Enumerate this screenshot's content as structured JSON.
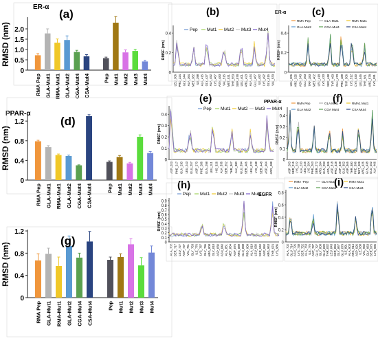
{
  "chart_data": [
    {
      "id": "a",
      "type": "bar",
      "panel_label": "(a)",
      "title": "ER-α",
      "ylabel": "RMSD (nm)",
      "ylim": [
        0,
        2.5
      ],
      "yticks": [
        0,
        0.5,
        1.0,
        1.5,
        2.0
      ],
      "categories": [
        "RMA Pep",
        "GLA-Mut1",
        "RMA-Mut1",
        "GLA-Mut2",
        "CGA-Mut4",
        "CSA-Mut4",
        "Pep",
        "Mut1",
        "Mut2",
        "Mut3",
        "Mut4"
      ],
      "values": [
        0.72,
        1.78,
        1.33,
        1.46,
        0.88,
        0.67,
        0.58,
        2.3,
        0.86,
        0.93,
        0.42
      ],
      "errors": [
        0.08,
        0.22,
        0.18,
        0.2,
        0.08,
        0.08,
        0.05,
        0.3,
        0.12,
        0.08,
        0.06
      ],
      "colors": [
        "#f0963c",
        "#b4b4b4",
        "#f0c828",
        "#5a9ad2",
        "#5aa050",
        "#2a4480",
        "#50505a",
        "#a07814",
        "#d873e6",
        "#5adc3c",
        "#7388d8"
      ]
    },
    {
      "id": "d",
      "type": "bar",
      "panel_label": "(d)",
      "title": "PPAR-α",
      "ylabel": "RMSD (nm)",
      "ylim": [
        0,
        1.3
      ],
      "yticks": [
        0,
        0.4,
        0.8,
        1.2
      ],
      "categories": [
        "RMA Pep",
        "GLA-Mut1",
        "RMA-Mut1",
        "GLA-Mut2",
        "CGA-Mut4",
        "CSA-Mut4",
        "Pep",
        "Mut1",
        "Mut2",
        "Mut3",
        "Mut4"
      ],
      "values": [
        0.79,
        0.67,
        0.51,
        0.49,
        0.3,
        1.3,
        0.37,
        0.47,
        0.34,
        0.88,
        0.55
      ],
      "errors": [
        0.02,
        0.03,
        0.02,
        0.02,
        0.01,
        0.03,
        0.02,
        0.03,
        0.02,
        0.04,
        0.03
      ],
      "colors": [
        "#f0963c",
        "#b4b4b4",
        "#f0c828",
        "#5a9ad2",
        "#5aa050",
        "#2a4480",
        "#50505a",
        "#a07814",
        "#d873e6",
        "#5adc3c",
        "#7388d8"
      ]
    },
    {
      "id": "g",
      "type": "bar",
      "panel_label": "(g)",
      "title": "",
      "ylabel": "RMSD (nm)",
      "ylim": [
        0,
        1.2
      ],
      "yticks": [
        0,
        0.4,
        0.8,
        1.2
      ],
      "categories": [
        "RMA Pep",
        "GLA-Mut1",
        "RMA-Mut1",
        "GLA-Mut2",
        "CGA-Mut4",
        "CSA-Mut4",
        "Pep",
        "Mut1",
        "Mut2",
        "Mut3",
        "Mut4"
      ],
      "values": [
        0.67,
        0.79,
        0.57,
        0.93,
        0.72,
        1.01,
        0.68,
        0.73,
        0.96,
        0.58,
        0.81
      ],
      "errors": [
        0.12,
        0.1,
        0.16,
        0.18,
        0.08,
        0.18,
        0.05,
        0.06,
        0.1,
        0.14,
        0.12
      ],
      "colors": [
        "#f0963c",
        "#b4b4b4",
        "#f0c828",
        "#5a9ad2",
        "#5aa050",
        "#2a4480",
        "#50505a",
        "#a07814",
        "#d873e6",
        "#5adc3c",
        "#7388d8"
      ]
    },
    {
      "id": "b",
      "type": "line",
      "panel_label": "(b)",
      "title": "",
      "ylabel": "RMSF (nm)",
      "ylim": [
        0,
        0.45
      ],
      "yticks": [
        0,
        0.2,
        0.4
      ],
      "legend": [
        "Pep",
        "Mut1",
        "Mut2",
        "Mut3",
        "Mut4"
      ],
      "colors": [
        "#6e96d2",
        "#a0d25a",
        "#f0c828",
        "#c8c8c8",
        "#785ac8"
      ],
      "points": 60,
      "peaks": [
        [
          0.04,
          0.3
        ],
        [
          0.2,
          0.2
        ],
        [
          0.33,
          0.26
        ],
        [
          0.5,
          0.22
        ],
        [
          0.67,
          0.22
        ],
        [
          0.8,
          0.24
        ],
        [
          0.93,
          0.44
        ]
      ],
      "ticks": [
        "LEU_306",
        "PRO_324",
        "GLY_344",
        "ALA_364",
        "MET_382",
        "ILE_398",
        "ALA_415",
        "GLY_437",
        "ALA_452",
        "LYS_467",
        "ASN_483",
        "VAL_515",
        "MET_531",
        "THR_553",
        "SER_578",
        "LEU_401",
        "ARG_423",
        "ALA_444",
        "GLU_467",
        "ILE_482",
        "LYS_492",
        "GLY_515",
        "VAL_533"
      ]
    },
    {
      "id": "c",
      "type": "line",
      "panel_label": "(c)",
      "title": "ER-α",
      "ylabel": "RMSF (nm)",
      "ylim": [
        0,
        0.45
      ],
      "yticks": [
        0,
        0.2,
        0.4
      ],
      "legend": [
        "RMA-Pep",
        "GLA-Mut1",
        "RMA-Mut1",
        "GLA-Mut2",
        "CGA-Mut4",
        "CSA-Mut4"
      ],
      "colors": [
        "#f0963c",
        "#b4b4b4",
        "#f0c828",
        "#5a9ad2",
        "#5aa050",
        "#2a4480"
      ],
      "points": 60,
      "peaks": [
        [
          0.22,
          0.24
        ],
        [
          0.47,
          0.34
        ],
        [
          0.6,
          0.32
        ],
        [
          0.72,
          0.3
        ],
        [
          0.86,
          0.22
        ]
      ],
      "ticks": [
        "LEU_306",
        "ARG_325",
        "ASN_343",
        "GLU_363",
        "TRP_383",
        "MET_402",
        "LEU_418",
        "LYS_433",
        "SER_448",
        "TYR_463",
        "GLU_473",
        "PRO_489",
        "THR_506",
        "LYS_512",
        "CYS_530",
        "LEU_545",
        "THR_561",
        "ARG_578",
        "LYS_591"
      ]
    },
    {
      "id": "e",
      "type": "line",
      "panel_label": "(e)",
      "title": "",
      "ylabel": "RMSF (nm)",
      "ylim": [
        0,
        0.45
      ],
      "yticks": [
        0,
        0.1,
        0.2,
        0.3,
        0.4
      ],
      "legend": [
        "Pep",
        "Mut1",
        "Mut2",
        "Mut3",
        "Mut4"
      ],
      "colors": [
        "#6e96d2",
        "#a0d25a",
        "#f0c828",
        "#c8c8c8",
        "#785ac8"
      ],
      "points": 64,
      "peaks": [
        [
          0.02,
          0.42
        ],
        [
          0.2,
          0.2
        ],
        [
          0.42,
          0.24
        ],
        [
          0.6,
          0.2
        ],
        [
          0.78,
          0.18
        ],
        [
          0.94,
          0.3
        ]
      ],
      "ticks": [
        "ASP_203",
        "PHE_217",
        "GLN_230",
        "LEU_243",
        "GLU_257",
        "ASP_270",
        "PHE_286",
        "GLN_298",
        "LEU_311",
        "HIS_326",
        "ALA_336",
        "SER_352",
        "THR_367",
        "ALA_380",
        "GLU_394",
        "SER_406",
        "LEU_422",
        "LYS_438",
        "SER_448",
        "ASP_464",
        "ARG_488"
      ]
    },
    {
      "id": "f",
      "type": "line",
      "panel_label": "(f)",
      "title": "PPAR-α",
      "ylabel": "RMSF (nm)",
      "ylim": [
        0,
        0.45
      ],
      "yticks": [
        0,
        0.1,
        0.2,
        0.3,
        0.4
      ],
      "legend": [
        "RMA Pep",
        "GLA Mut1",
        "RMA1 Mut1",
        "GLA Mut2",
        "CGA Mut4",
        "CSA Mut4"
      ],
      "colors": [
        "#f0963c",
        "#b4b4b4",
        "#f0c828",
        "#5a9ad2",
        "#5aa050",
        "#2a4480"
      ],
      "points": 64,
      "peaks": [
        [
          0.03,
          0.42
        ],
        [
          0.12,
          0.3
        ],
        [
          0.3,
          0.22
        ],
        [
          0.47,
          0.22
        ],
        [
          0.62,
          0.18
        ],
        [
          0.8,
          0.24
        ],
        [
          0.95,
          0.38
        ]
      ],
      "ticks": [
        "ASP_203",
        "SER_215",
        "LYS_222",
        "ALA_233",
        "LEU_245",
        "LYS_254",
        "PHE_263",
        "SER_272",
        "ARG_284",
        "GLN_293",
        "ASN_306",
        "ASP_318",
        "PRO_328",
        "ASP_339",
        "GLU_352",
        "ASP_365",
        "THR_380",
        "PHE_396",
        "MET_409",
        "ARG_426",
        "GLN_438",
        "GLU_452",
        "ALA_466"
      ]
    },
    {
      "id": "h",
      "type": "line",
      "panel_label": "(h)",
      "title": "EGFR",
      "ylabel": "RMSF (nm)",
      "ylim": [
        0,
        0.9
      ],
      "yticks": [
        0,
        0.1,
        0.2,
        0.3,
        0.4,
        0.5,
        0.6,
        0.7,
        0.8,
        0.9
      ],
      "legend": [
        "Pep",
        "Mut1",
        "Mut2",
        "Mut3",
        "Mut4"
      ],
      "colors": [
        "#6e96d2",
        "#a0d25a",
        "#f0c828",
        "#c8c8c8",
        "#785ac8"
      ],
      "points": 70,
      "peaks": [
        [
          0.3,
          0.3
        ],
        [
          0.5,
          0.28
        ],
        [
          0.68,
          0.7
        ],
        [
          0.94,
          0.62
        ]
      ],
      "ticks": [
        "ALA_702",
        "SER_717",
        "LEU_727",
        "ASP_737",
        "VAL_751",
        "GLY_763",
        "ILE_776",
        "LYS_787",
        "GLY_796",
        "ARG_808",
        "GLY_818",
        "ASP_830",
        "ASN_840",
        "ALA_851",
        "MET_864",
        "ASP_876",
        "ARG_889",
        "GLN_898",
        "PRO_909",
        "ALA_919",
        "LEU_930",
        "SER_940",
        "ASP_950",
        "ARG_963",
        "THR_974",
        "LYS_986"
      ]
    },
    {
      "id": "i",
      "type": "line",
      "panel_label": "(i)",
      "title": "",
      "ylabel": "RMSF (nm)",
      "ylim": [
        0,
        0.8
      ],
      "yticks": [
        0,
        0.2,
        0.4,
        0.6,
        0.8
      ],
      "legend": [
        "RMA -Pep",
        "GLA Mut1",
        "RMA Mut1",
        "GLA Mut2",
        "CGA Mut4",
        "CSA Mut4"
      ],
      "colors": [
        "#f0963c",
        "#b4b4b4",
        "#f0c828",
        "#5a9ad2",
        "#5aa050",
        "#2a4480"
      ],
      "points": 70,
      "peaks": [
        [
          0.05,
          0.3
        ],
        [
          0.3,
          0.28
        ],
        [
          0.57,
          0.6
        ],
        [
          0.77,
          0.3
        ],
        [
          0.95,
          0.55
        ]
      ],
      "ticks": [
        "ALA_702",
        "GLU_714",
        "ASN_726",
        "LYS_738",
        "SER_752",
        "ALA_763",
        "ILE_776",
        "ASP_787",
        "GLN_797",
        "GLY_808",
        "GLU_820",
        "THR_832",
        "LEU_843",
        "SER_855",
        "GLY_867",
        "GLU_879",
        "ILE_891",
        "ALA_903",
        "ARG_914",
        "ASP_926",
        "ILE_938",
        "VAL_950",
        "GLY_963",
        "SER_975",
        "LYS_986"
      ]
    }
  ]
}
